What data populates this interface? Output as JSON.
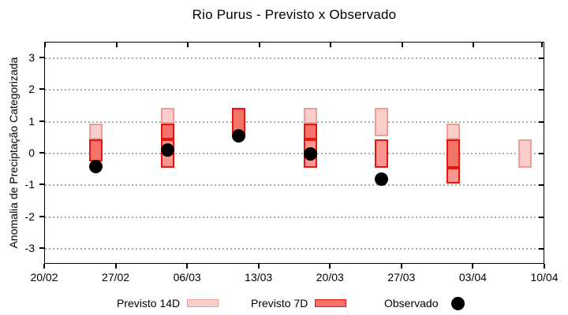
{
  "chart_data": {
    "type": "candlestick",
    "title": "Rio Purus - Previsto x Observado",
    "ylabel": "Anomalia de Preciptação Categorizada",
    "ylim": [
      -3.5,
      3.5
    ],
    "yticks": [
      -3,
      -2,
      -1,
      0,
      1,
      2,
      3
    ],
    "x_total_days": 49,
    "xticks": [
      {
        "day": 0,
        "label": "20/02"
      },
      {
        "day": 7,
        "label": "27/02"
      },
      {
        "day": 14,
        "label": "06/03"
      },
      {
        "day": 21,
        "label": "13/03"
      },
      {
        "day": 28,
        "label": "20/03"
      },
      {
        "day": 35,
        "label": "27/03"
      },
      {
        "day": 42,
        "label": "03/04"
      },
      {
        "day": 49,
        "label": "10/04"
      }
    ],
    "grid": "horizontal-dotted",
    "legend_position": "bottom",
    "bars": [
      {
        "date": "25/02",
        "day": 5,
        "segments": [
          {
            "from": 0.45,
            "to": 0.95,
            "style": "light"
          },
          {
            "from": -0.25,
            "to": 0.45,
            "style": "dark"
          }
        ],
        "observed": -0.4
      },
      {
        "date": "04/03",
        "day": 12,
        "segments": [
          {
            "from": 0.95,
            "to": 1.45,
            "style": "light"
          },
          {
            "from": 0.45,
            "to": 0.95,
            "style": "dark"
          },
          {
            "from": -0.45,
            "to": 0.45,
            "style": "medium"
          }
        ],
        "observed": 0.1
      },
      {
        "date": "11/03",
        "day": 19,
        "segments": [
          {
            "from": 0.55,
            "to": 1.45,
            "style": "dark"
          }
        ],
        "observed": 0.55
      },
      {
        "date": "18/03",
        "day": 26,
        "segments": [
          {
            "from": 0.95,
            "to": 1.45,
            "style": "light"
          },
          {
            "from": 0.45,
            "to": 0.95,
            "style": "dark"
          },
          {
            "from": -0.45,
            "to": 0.45,
            "style": "medium"
          }
        ],
        "observed": 0.0
      },
      {
        "date": "25/03",
        "day": 33,
        "segments": [
          {
            "from": 0.55,
            "to": 1.45,
            "style": "light"
          },
          {
            "from": -0.45,
            "to": 0.45,
            "style": "medium"
          }
        ],
        "observed": -0.8
      },
      {
        "date": "01/04",
        "day": 40,
        "segments": [
          {
            "from": 0.45,
            "to": 0.95,
            "style": "light"
          },
          {
            "from": -0.45,
            "to": 0.45,
            "style": "dark"
          },
          {
            "from": -0.95,
            "to": -0.45,
            "style": "medium"
          }
        ],
        "observed": null
      },
      {
        "date": "08/04",
        "day": 47,
        "segments": [
          {
            "from": -0.45,
            "to": 0.45,
            "style": "light"
          }
        ],
        "observed": null
      }
    ],
    "legend": [
      {
        "label": "Previsto 14D",
        "swatch": "light"
      },
      {
        "label": "Previsto 7D",
        "swatch": "dark"
      },
      {
        "label": "Observado",
        "swatch": "dot"
      }
    ],
    "colors": {
      "light_fill": "#fbcfc9",
      "light_border": "#f09b94",
      "medium_fill": "#f9968f",
      "dark_fill": "#f3726a",
      "red_border": "#e9140b",
      "observed": "#000000",
      "grid": "#a9a9a9",
      "frame": "#000000"
    }
  }
}
